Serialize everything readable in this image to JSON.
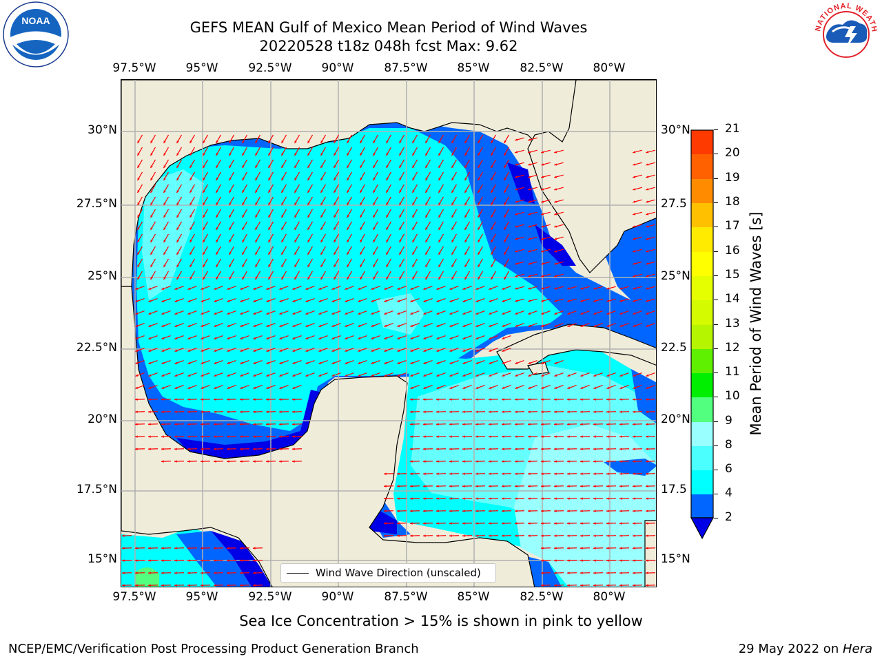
{
  "header": {
    "title_line1": "GEFS MEAN Gulf of Mexico Mean Period of Wind Waves",
    "title_line2": "20220528 t18z 048h fcst   Max: 9.62"
  },
  "logos": {
    "left": "NOAA",
    "left_ring": "NATIONAL OCEANIC AND ATMOSPHERIC ADMINISTRATION · U.S. DEPARTMENT OF COMMERCE",
    "right_ring": "NATIONAL WEATHER SERVICE"
  },
  "map": {
    "x_ticks": [
      "97.5°W",
      "95°W",
      "92.5°W",
      "90°W",
      "87.5°W",
      "85°W",
      "82.5°W",
      "80°W"
    ],
    "y_ticks_left": [
      "30°N",
      "27.5°N",
      "25°N",
      "22.5°N",
      "20°N",
      "17.5°N",
      "15°N"
    ],
    "y_ticks_right": [
      "30°N",
      "27.5",
      "25°N",
      "22.5",
      "20°N",
      "17.5",
      "15°N"
    ],
    "legend_label": "Wind Wave Direction (unscaled)",
    "colors": {
      "land": "#efecda",
      "band_2_4": "#0066ff",
      "band_4_6": "#00ffff",
      "band_6_8": "#66ffff",
      "band_8_9": "#99ffff",
      "band_below_2": "#0000e6",
      "arrow": "#ff0000",
      "gridline": "#b0b0b0"
    }
  },
  "colorbar": {
    "label": "Mean Period of Wind Waves [s]",
    "ticks": [
      "21",
      "20",
      "19",
      "18",
      "17",
      "16",
      "15",
      "14",
      "13",
      "12",
      "11",
      "10",
      "9",
      "8",
      "6",
      "4",
      "2"
    ],
    "colors": [
      "#0066ff",
      "#00ffff",
      "#4cffff",
      "#99ffff",
      "#52ff7f",
      "#00ee00",
      "#5ef000",
      "#b5f500",
      "#d4fb00",
      "#e6ff00",
      "#ffff00",
      "#ffeb00",
      "#ffc000",
      "#ff8c00",
      "#ff6000",
      "#ff3a00",
      "#ff1c00",
      "#ff0000"
    ],
    "extend_color": "#0000e6"
  },
  "footer": {
    "note": "Sea Ice Concentration > 15% is shown in pink to yellow",
    "left": "NCEP/EMC/Verification Post Processing Product Generation Branch",
    "right_prefix": "29 May 2022 on ",
    "right_host": "Hera"
  }
}
